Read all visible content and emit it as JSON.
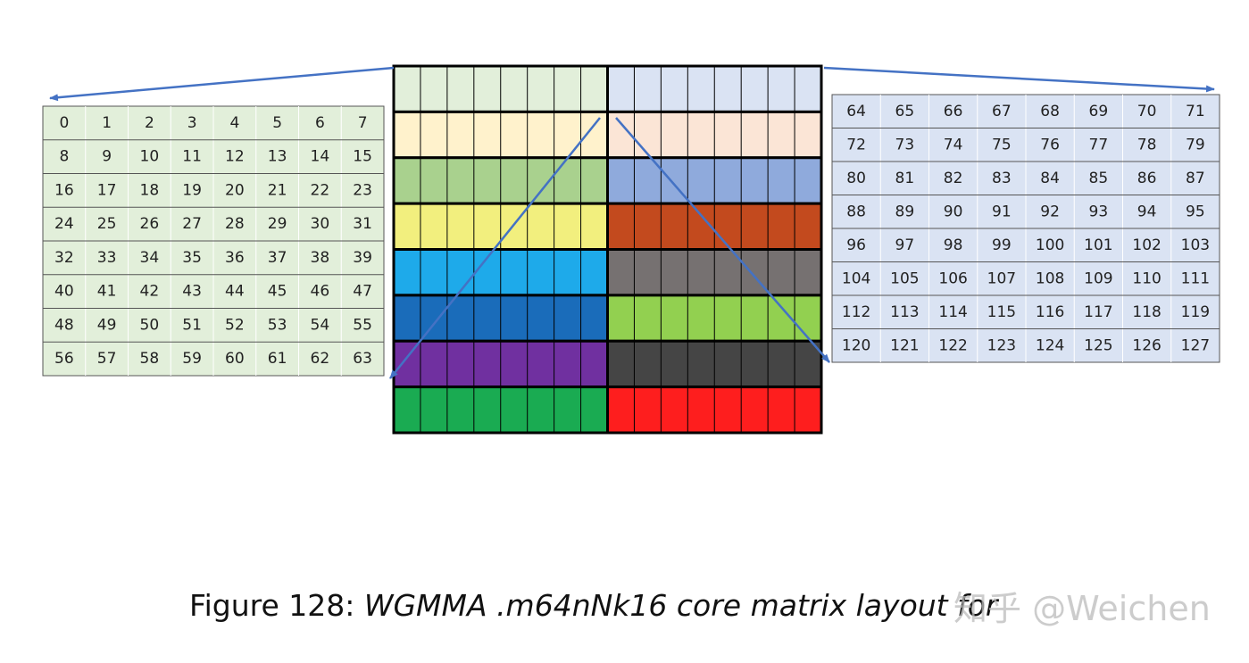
{
  "left_table": {
    "rows": [
      [
        "0",
        "1",
        "2",
        "3",
        "4",
        "5",
        "6",
        "7"
      ],
      [
        "8",
        "9",
        "10",
        "11",
        "12",
        "13",
        "14",
        "15"
      ],
      [
        "16",
        "17",
        "18",
        "19",
        "20",
        "21",
        "22",
        "23"
      ],
      [
        "24",
        "25",
        "26",
        "27",
        "28",
        "29",
        "30",
        "31"
      ],
      [
        "32",
        "33",
        "34",
        "35",
        "36",
        "37",
        "38",
        "39"
      ],
      [
        "40",
        "41",
        "42",
        "43",
        "44",
        "45",
        "46",
        "47"
      ],
      [
        "48",
        "49",
        "50",
        "51",
        "52",
        "53",
        "54",
        "55"
      ],
      [
        "56",
        "57",
        "58",
        "59",
        "60",
        "61",
        "62",
        "63"
      ]
    ]
  },
  "right_table": {
    "rows": [
      [
        "64",
        "65",
        "66",
        "67",
        "68",
        "69",
        "70",
        "71"
      ],
      [
        "72",
        "73",
        "74",
        "75",
        "76",
        "77",
        "78",
        "79"
      ],
      [
        "80",
        "81",
        "82",
        "83",
        "84",
        "85",
        "86",
        "87"
      ],
      [
        "88",
        "89",
        "90",
        "91",
        "92",
        "93",
        "94",
        "95"
      ],
      [
        "96",
        "97",
        "98",
        "99",
        "100",
        "101",
        "102",
        "103"
      ],
      [
        "104",
        "105",
        "106",
        "107",
        "108",
        "109",
        "110",
        "111"
      ],
      [
        "112",
        "113",
        "114",
        "115",
        "116",
        "117",
        "118",
        "119"
      ],
      [
        "120",
        "121",
        "122",
        "123",
        "124",
        "125",
        "126",
        "127"
      ]
    ]
  },
  "caption": {
    "label": "Figure 128:",
    "title": "WGMMA .m64nNk16 core matrix layout for"
  },
  "watermark": "知乎 @Weichen"
}
